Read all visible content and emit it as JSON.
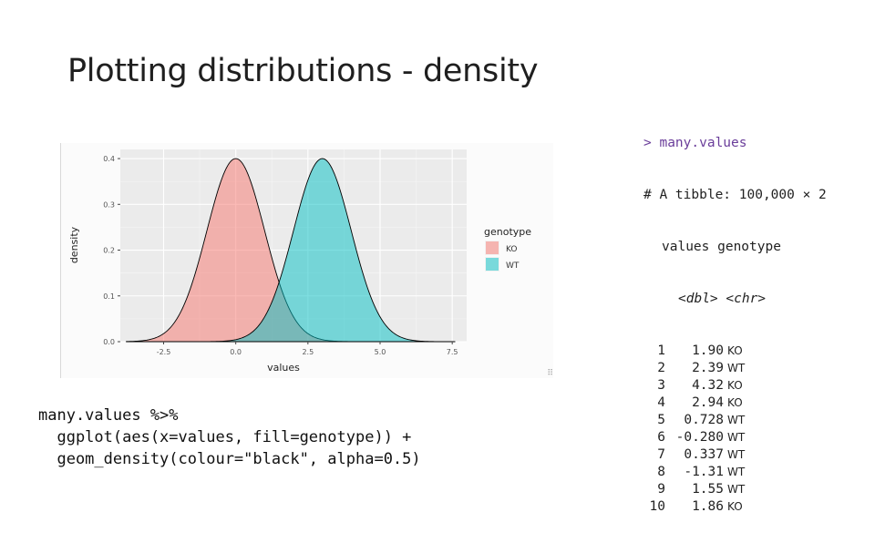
{
  "title": "Plotting distributions - density",
  "console": {
    "prompt": "> many.values",
    "summary": "# A tibble: 100,000 × 2",
    "col_header": "values genotype",
    "col_types": "<dbl> <chr>",
    "rows": [
      {
        "idx": "1",
        "value": "1.90",
        "genotype": "KO"
      },
      {
        "idx": "2",
        "value": "2.39",
        "genotype": "WT"
      },
      {
        "idx": "3",
        "value": "4.32",
        "genotype": "KO"
      },
      {
        "idx": "4",
        "value": "2.94",
        "genotype": "KO"
      },
      {
        "idx": "5",
        "value": "0.728",
        "genotype": "WT"
      },
      {
        "idx": "6",
        "value": "-0.280",
        "genotype": "WT"
      },
      {
        "idx": "7",
        "value": "0.337",
        "genotype": "WT"
      },
      {
        "idx": "8",
        "value": "-1.31",
        "genotype": "WT"
      },
      {
        "idx": "9",
        "value": "1.55",
        "genotype": "WT"
      },
      {
        "idx": "10",
        "value": "1.86",
        "genotype": "KO"
      }
    ]
  },
  "code": {
    "line1": "many.values %>%",
    "line2": "  ggplot(aes(x=values, fill=genotype)) +",
    "line3": "  geom_density(colour=\"black\", alpha=0.5)"
  },
  "chart_data": {
    "type": "area",
    "xlabel": "values",
    "ylabel": "density",
    "xlim": [
      -4,
      8
    ],
    "ylim": [
      0,
      0.42
    ],
    "x_ticks": [
      -2.5,
      0.0,
      2.5,
      5.0,
      7.5
    ],
    "x_tick_labels": [
      "-2.5",
      "0.0",
      "2.5",
      "5.0",
      "7.5"
    ],
    "y_ticks": [
      0.0,
      0.1,
      0.2,
      0.3,
      0.4
    ],
    "y_tick_labels": [
      "0.0",
      "0.1",
      "0.2",
      "0.3",
      "0.4"
    ],
    "grid": true,
    "legend": {
      "title": "genotype",
      "position": "right"
    },
    "series": [
      {
        "name": "KO",
        "color": "#f8766d",
        "mean": 0.0,
        "sd": 1.0,
        "peak": 0.4
      },
      {
        "name": "WT",
        "color": "#00bfc4",
        "mean": 3.0,
        "sd": 1.0,
        "peak": 0.4
      }
    ]
  }
}
